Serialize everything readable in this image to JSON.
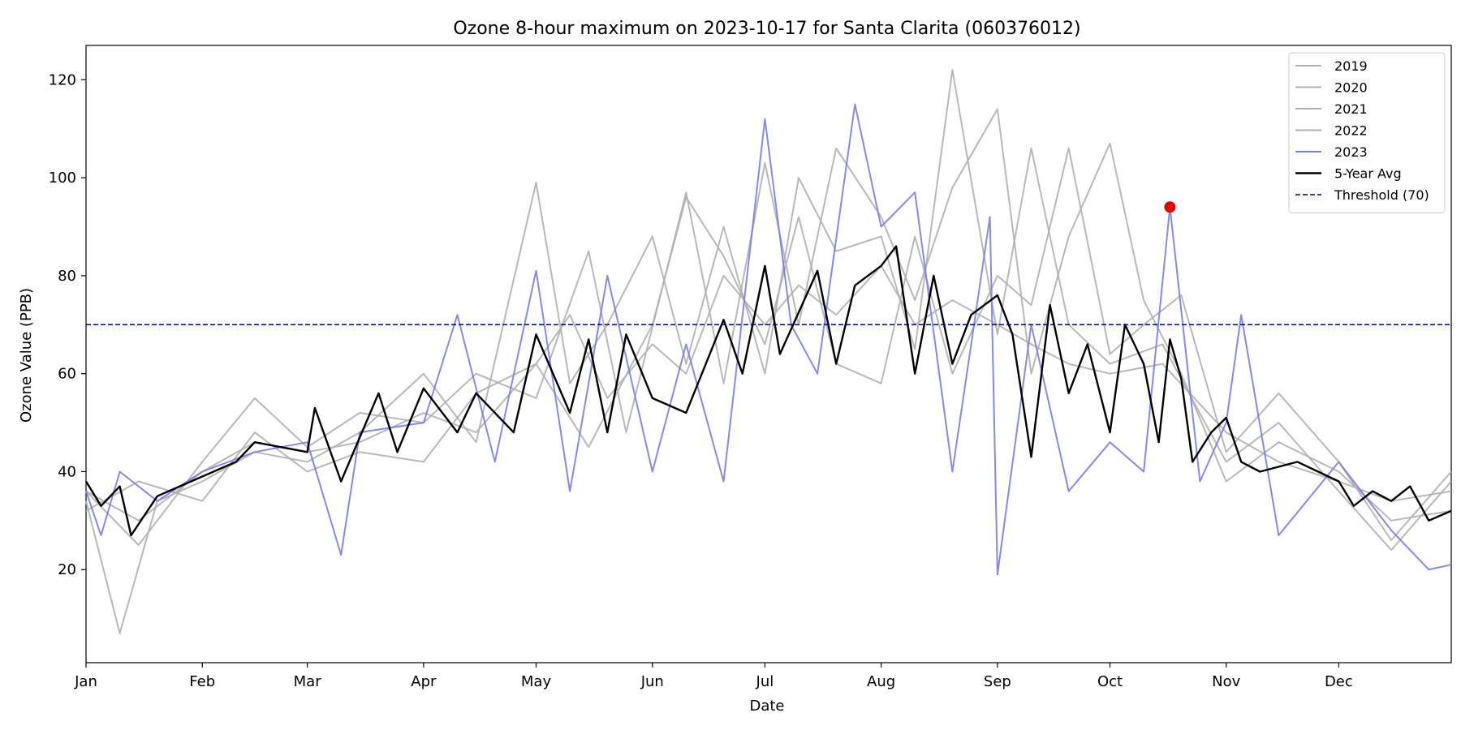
{
  "chart_data": {
    "type": "line",
    "title": "Ozone 8-hour maximum on 2023-10-17 for Santa Clarita (060376012)",
    "xlabel": "Date",
    "ylabel": "Ozone Value (PPB)",
    "ylim": [
      1,
      127
    ],
    "y_ticks": [
      20,
      40,
      60,
      80,
      100,
      120
    ],
    "x_ticks": [
      "Jan",
      "Feb",
      "Mar",
      "Apr",
      "May",
      "Jun",
      "Jul",
      "Aug",
      "Sep",
      "Oct",
      "Nov",
      "Dec"
    ],
    "x_tick_dates": [
      "2023-01-01",
      "2023-02-01",
      "2023-03-01",
      "2023-04-01",
      "2023-05-01",
      "2023-06-01",
      "2023-07-01",
      "2023-08-01",
      "2023-09-01",
      "2023-10-01",
      "2023-11-01",
      "2023-12-01"
    ],
    "xlim": [
      "2023-01-01",
      "2023-12-31"
    ],
    "legend_position": "top-right",
    "grid": false,
    "threshold": {
      "name": "Threshold (70)",
      "value": 70,
      "color": "#00008b"
    },
    "highlight_point": {
      "date": "2023-10-17",
      "value": 94,
      "color": "#ee0000"
    },
    "series": [
      {
        "name": "2019",
        "color": "#b0b0b0",
        "points": [
          [
            "2023-01-01",
            36
          ],
          [
            "2023-01-15",
            30
          ],
          [
            "2023-02-01",
            40
          ],
          [
            "2023-02-15",
            46
          ],
          [
            "2023-03-01",
            44
          ],
          [
            "2023-03-15",
            46
          ],
          [
            "2023-04-01",
            52
          ],
          [
            "2023-04-15",
            48
          ],
          [
            "2023-05-01",
            62
          ],
          [
            "2023-05-10",
            72
          ],
          [
            "2023-05-20",
            55
          ],
          [
            "2023-06-01",
            66
          ],
          [
            "2023-06-10",
            60
          ],
          [
            "2023-06-20",
            80
          ],
          [
            "2023-07-01",
            70
          ],
          [
            "2023-07-10",
            78
          ],
          [
            "2023-07-20",
            72
          ],
          [
            "2023-08-01",
            82
          ],
          [
            "2023-08-10",
            70
          ],
          [
            "2023-08-20",
            75
          ],
          [
            "2023-09-01",
            70
          ],
          [
            "2023-09-10",
            66
          ],
          [
            "2023-09-20",
            62
          ],
          [
            "2023-10-01",
            60
          ],
          [
            "2023-10-15",
            62
          ],
          [
            "2023-11-01",
            48
          ],
          [
            "2023-11-15",
            42
          ],
          [
            "2023-12-01",
            38
          ],
          [
            "2023-12-15",
            34
          ],
          [
            "2023-12-31",
            36
          ]
        ]
      },
      {
        "name": "2020",
        "color": "#b0b0b0",
        "points": [
          [
            "2023-01-01",
            34
          ],
          [
            "2023-01-10",
            7
          ],
          [
            "2023-01-20",
            34
          ],
          [
            "2023-02-01",
            38
          ],
          [
            "2023-02-15",
            44
          ],
          [
            "2023-03-01",
            42
          ],
          [
            "2023-03-15",
            48
          ],
          [
            "2023-04-01",
            60
          ],
          [
            "2023-04-15",
            46
          ],
          [
            "2023-05-01",
            99
          ],
          [
            "2023-05-10",
            58
          ],
          [
            "2023-05-20",
            70
          ],
          [
            "2023-06-01",
            88
          ],
          [
            "2023-06-10",
            62
          ],
          [
            "2023-06-20",
            90
          ],
          [
            "2023-07-01",
            60
          ],
          [
            "2023-07-10",
            100
          ],
          [
            "2023-07-20",
            85
          ],
          [
            "2023-08-01",
            88
          ],
          [
            "2023-08-10",
            65
          ],
          [
            "2023-08-20",
            122
          ],
          [
            "2023-09-01",
            68
          ],
          [
            "2023-09-10",
            106
          ],
          [
            "2023-09-20",
            70
          ],
          [
            "2023-10-01",
            62
          ],
          [
            "2023-10-15",
            66
          ],
          [
            "2023-11-01",
            42
          ],
          [
            "2023-11-15",
            50
          ],
          [
            "2023-12-01",
            36
          ],
          [
            "2023-12-15",
            24
          ],
          [
            "2023-12-31",
            38
          ]
        ]
      },
      {
        "name": "2021",
        "color": "#b0b0b0",
        "points": [
          [
            "2023-01-01",
            36
          ],
          [
            "2023-01-15",
            25
          ],
          [
            "2023-02-01",
            42
          ],
          [
            "2023-02-15",
            55
          ],
          [
            "2023-03-01",
            45
          ],
          [
            "2023-03-15",
            52
          ],
          [
            "2023-04-01",
            50
          ],
          [
            "2023-04-15",
            60
          ],
          [
            "2023-05-01",
            55
          ],
          [
            "2023-05-15",
            85
          ],
          [
            "2023-05-25",
            48
          ],
          [
            "2023-06-10",
            97
          ],
          [
            "2023-06-20",
            58
          ],
          [
            "2023-07-01",
            103
          ],
          [
            "2023-07-10",
            70
          ],
          [
            "2023-07-20",
            106
          ],
          [
            "2023-08-01",
            92
          ],
          [
            "2023-08-10",
            75
          ],
          [
            "2023-08-20",
            98
          ],
          [
            "2023-09-01",
            114
          ],
          [
            "2023-09-10",
            60
          ],
          [
            "2023-09-20",
            88
          ],
          [
            "2023-10-01",
            107
          ],
          [
            "2023-10-10",
            75
          ],
          [
            "2023-10-20",
            60
          ],
          [
            "2023-11-01",
            38
          ],
          [
            "2023-11-15",
            46
          ],
          [
            "2023-12-01",
            40
          ],
          [
            "2023-12-15",
            30
          ],
          [
            "2023-12-31",
            32
          ]
        ]
      },
      {
        "name": "2022",
        "color": "#b0b0b0",
        "points": [
          [
            "2023-01-01",
            32
          ],
          [
            "2023-01-15",
            38
          ],
          [
            "2023-02-01",
            34
          ],
          [
            "2023-02-15",
            48
          ],
          [
            "2023-03-01",
            40
          ],
          [
            "2023-03-15",
            44
          ],
          [
            "2023-04-01",
            42
          ],
          [
            "2023-04-15",
            56
          ],
          [
            "2023-05-01",
            62
          ],
          [
            "2023-05-15",
            45
          ],
          [
            "2023-06-01",
            70
          ],
          [
            "2023-06-10",
            96
          ],
          [
            "2023-06-20",
            84
          ],
          [
            "2023-07-01",
            66
          ],
          [
            "2023-07-10",
            92
          ],
          [
            "2023-07-20",
            62
          ],
          [
            "2023-08-01",
            58
          ],
          [
            "2023-08-10",
            88
          ],
          [
            "2023-08-20",
            60
          ],
          [
            "2023-09-01",
            80
          ],
          [
            "2023-09-10",
            74
          ],
          [
            "2023-09-20",
            106
          ],
          [
            "2023-10-01",
            64
          ],
          [
            "2023-10-10",
            70
          ],
          [
            "2023-10-20",
            76
          ],
          [
            "2023-11-01",
            44
          ],
          [
            "2023-11-15",
            56
          ],
          [
            "2023-12-01",
            42
          ],
          [
            "2023-12-15",
            26
          ],
          [
            "2023-12-31",
            40
          ]
        ]
      },
      {
        "name": "2023",
        "color": "#7b7be8",
        "points": [
          [
            "2023-01-01",
            36
          ],
          [
            "2023-01-05",
            27
          ],
          [
            "2023-01-10",
            40
          ],
          [
            "2023-01-20",
            34
          ],
          [
            "2023-02-01",
            40
          ],
          [
            "2023-02-15",
            44
          ],
          [
            "2023-03-01",
            46
          ],
          [
            "2023-03-10",
            23
          ],
          [
            "2023-03-15",
            48
          ],
          [
            "2023-04-01",
            50
          ],
          [
            "2023-04-10",
            72
          ],
          [
            "2023-04-20",
            42
          ],
          [
            "2023-05-01",
            81
          ],
          [
            "2023-05-10",
            36
          ],
          [
            "2023-05-20",
            80
          ],
          [
            "2023-06-01",
            40
          ],
          [
            "2023-06-10",
            66
          ],
          [
            "2023-06-20",
            38
          ],
          [
            "2023-07-01",
            112
          ],
          [
            "2023-07-08",
            70
          ],
          [
            "2023-07-15",
            60
          ],
          [
            "2023-07-25",
            115
          ],
          [
            "2023-08-01",
            90
          ],
          [
            "2023-08-10",
            97
          ],
          [
            "2023-08-20",
            40
          ],
          [
            "2023-08-30",
            92
          ],
          [
            "2023-09-01",
            19
          ],
          [
            "2023-09-10",
            70
          ],
          [
            "2023-09-20",
            36
          ],
          [
            "2023-10-01",
            46
          ],
          [
            "2023-10-10",
            40
          ],
          [
            "2023-10-17",
            94
          ],
          [
            "2023-10-25",
            38
          ],
          [
            "2023-11-01",
            50
          ],
          [
            "2023-11-05",
            72
          ],
          [
            "2023-11-15",
            27
          ],
          [
            "2023-12-01",
            42
          ],
          [
            "2023-12-15",
            28
          ],
          [
            "2023-12-25",
            20
          ],
          [
            "2023-12-31",
            21
          ]
        ]
      },
      {
        "name": "5-Year Avg",
        "color": "#000000",
        "points": [
          [
            "2023-01-01",
            38
          ],
          [
            "2023-01-05",
            33
          ],
          [
            "2023-01-10",
            37
          ],
          [
            "2023-01-13",
            27
          ],
          [
            "2023-01-20",
            35
          ],
          [
            "2023-02-01",
            39
          ],
          [
            "2023-02-10",
            42
          ],
          [
            "2023-02-15",
            46
          ],
          [
            "2023-03-01",
            44
          ],
          [
            "2023-03-03",
            53
          ],
          [
            "2023-03-10",
            38
          ],
          [
            "2023-03-20",
            56
          ],
          [
            "2023-03-25",
            44
          ],
          [
            "2023-04-01",
            57
          ],
          [
            "2023-04-10",
            48
          ],
          [
            "2023-04-15",
            56
          ],
          [
            "2023-04-25",
            48
          ],
          [
            "2023-05-01",
            68
          ],
          [
            "2023-05-10",
            52
          ],
          [
            "2023-05-15",
            67
          ],
          [
            "2023-05-20",
            48
          ],
          [
            "2023-05-25",
            68
          ],
          [
            "2023-06-01",
            55
          ],
          [
            "2023-06-10",
            52
          ],
          [
            "2023-06-20",
            71
          ],
          [
            "2023-06-25",
            60
          ],
          [
            "2023-07-01",
            82
          ],
          [
            "2023-07-05",
            64
          ],
          [
            "2023-07-15",
            81
          ],
          [
            "2023-07-20",
            62
          ],
          [
            "2023-07-25",
            78
          ],
          [
            "2023-08-01",
            82
          ],
          [
            "2023-08-05",
            86
          ],
          [
            "2023-08-10",
            60
          ],
          [
            "2023-08-15",
            80
          ],
          [
            "2023-08-20",
            62
          ],
          [
            "2023-08-25",
            72
          ],
          [
            "2023-09-01",
            76
          ],
          [
            "2023-09-05",
            68
          ],
          [
            "2023-09-10",
            43
          ],
          [
            "2023-09-15",
            74
          ],
          [
            "2023-09-20",
            56
          ],
          [
            "2023-09-25",
            66
          ],
          [
            "2023-10-01",
            48
          ],
          [
            "2023-10-05",
            70
          ],
          [
            "2023-10-10",
            62
          ],
          [
            "2023-10-14",
            46
          ],
          [
            "2023-10-17",
            67
          ],
          [
            "2023-10-20",
            59
          ],
          [
            "2023-10-23",
            42
          ],
          [
            "2023-10-28",
            48
          ],
          [
            "2023-11-01",
            51
          ],
          [
            "2023-11-05",
            42
          ],
          [
            "2023-11-10",
            40
          ],
          [
            "2023-11-20",
            42
          ],
          [
            "2023-12-01",
            38
          ],
          [
            "2023-12-05",
            33
          ],
          [
            "2023-12-10",
            36
          ],
          [
            "2023-12-15",
            34
          ],
          [
            "2023-12-20",
            37
          ],
          [
            "2023-12-25",
            30
          ],
          [
            "2023-12-31",
            32
          ]
        ]
      }
    ]
  }
}
